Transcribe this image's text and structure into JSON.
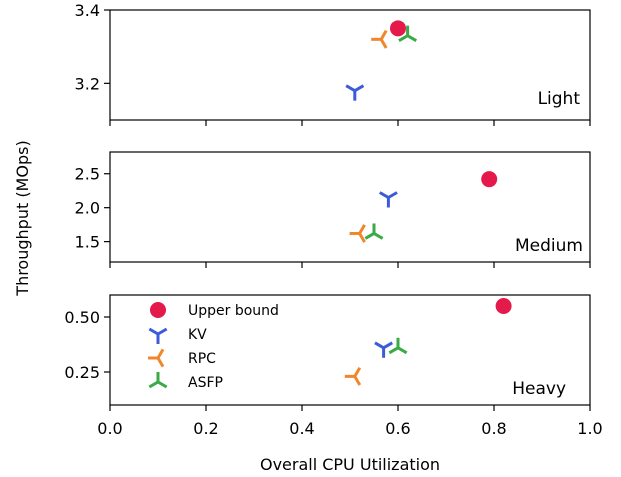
{
  "chart_data": {
    "type": "scatter",
    "xlabel": "Overall CPU Utilization",
    "ylabel": "Throughput (MOps)",
    "xlim": [
      0.0,
      1.0
    ],
    "x_ticks": [
      "0.0",
      "0.2",
      "0.4",
      "0.6",
      "0.8",
      "1.0"
    ],
    "legend": {
      "placement": "upper-left of bottom panel",
      "entries": [
        {
          "label": "Upper bound",
          "color": "#e31a4a",
          "marker": "circle"
        },
        {
          "label": "KV",
          "color": "#3b5bd9",
          "marker": "tri_down"
        },
        {
          "label": "RPC",
          "color": "#f0872d",
          "marker": "tri_left"
        },
        {
          "label": "ASFP",
          "color": "#3aaa47",
          "marker": "tri_up"
        }
      ]
    },
    "panels": [
      {
        "label": "Light",
        "ylim": [
          3.1,
          3.4
        ],
        "y_ticks": [
          {
            "value": 3.2,
            "label": "3.2"
          },
          {
            "value": 3.4,
            "label": "3.4"
          }
        ],
        "points": [
          {
            "series": "Upper bound",
            "x": 0.6,
            "y": 3.35
          },
          {
            "series": "KV",
            "x": 0.51,
            "y": 3.18
          },
          {
            "series": "RPC",
            "x": 0.565,
            "y": 3.32
          },
          {
            "series": "ASFP",
            "x": 0.62,
            "y": 3.33
          }
        ]
      },
      {
        "label": "Medium",
        "ylim": [
          1.2,
          2.82
        ],
        "y_ticks": [
          {
            "value": 1.5,
            "label": "1.5"
          },
          {
            "value": 2.0,
            "label": "2.0"
          },
          {
            "value": 2.5,
            "label": "2.5"
          }
        ],
        "points": [
          {
            "series": "Upper bound",
            "x": 0.79,
            "y": 2.42
          },
          {
            "series": "KV",
            "x": 0.58,
            "y": 2.15
          },
          {
            "series": "RPC",
            "x": 0.52,
            "y": 1.62
          },
          {
            "series": "ASFP",
            "x": 0.55,
            "y": 1.62
          }
        ]
      },
      {
        "label": "Heavy",
        "ylim": [
          0.1,
          0.6
        ],
        "y_ticks": [
          {
            "value": 0.25,
            "label": "0.25"
          },
          {
            "value": 0.5,
            "label": "0.50"
          }
        ],
        "points": [
          {
            "series": "Upper bound",
            "x": 0.82,
            "y": 0.55
          },
          {
            "series": "KV",
            "x": 0.57,
            "y": 0.36
          },
          {
            "series": "RPC",
            "x": 0.51,
            "y": 0.23
          },
          {
            "series": "ASFP",
            "x": 0.6,
            "y": 0.36
          }
        ]
      }
    ]
  }
}
